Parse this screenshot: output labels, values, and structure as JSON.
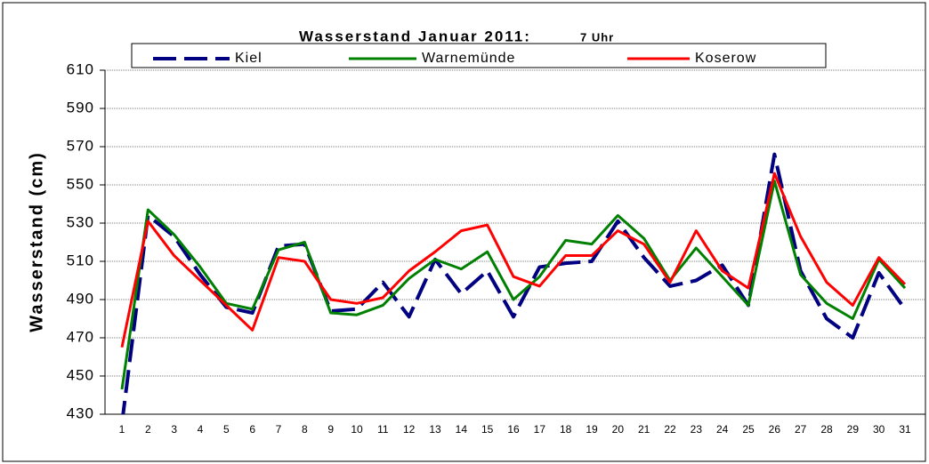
{
  "chart_data": {
    "type": "line",
    "title": "Wasserstand Januar 2011:",
    "subtitle": "7 Uhr",
    "ylabel": "Wasserstand (cm)",
    "categories": [
      "1",
      "2",
      "3",
      "4",
      "5",
      "6",
      "7",
      "8",
      "9",
      "10",
      "11",
      "12",
      "13",
      "14",
      "15",
      "16",
      "17",
      "18",
      "19",
      "20",
      "21",
      "22",
      "23",
      "24",
      "25",
      "26",
      "27",
      "28",
      "29",
      "30",
      "31"
    ],
    "series": [
      {
        "name": "Kiel",
        "color": "#000080",
        "dashed": true,
        "values": [
          425,
          534,
          523,
          503,
          486,
          483,
          518,
          519,
          484,
          485,
          499,
          481,
          511,
          493,
          505,
          481,
          507,
          509,
          510,
          531,
          512,
          497,
          500,
          508,
          487,
          566,
          505,
          480,
          470,
          504,
          485
        ]
      },
      {
        "name": "Warnemünde",
        "color": "#008000",
        "values": [
          443,
          537,
          524,
          507,
          488,
          485,
          516,
          520,
          483,
          482,
          487,
          501,
          511,
          506,
          515,
          490,
          502,
          521,
          519,
          534,
          522,
          500,
          517,
          502,
          487,
          552,
          503,
          488,
          480,
          511,
          496
        ]
      },
      {
        "name": "Koserow",
        "color": "#ff0000",
        "values": [
          465,
          531,
          513,
          500,
          487,
          474,
          512,
          510,
          490,
          488,
          491,
          505,
          515,
          526,
          529,
          502,
          497,
          513,
          513,
          526,
          519,
          499,
          526,
          505,
          496,
          556,
          523,
          499,
          487,
          512,
          498
        ]
      }
    ],
    "ylim": [
      430,
      610
    ],
    "yticks": [
      430,
      450,
      470,
      490,
      510,
      530,
      550,
      570,
      590,
      610
    ],
    "grid": true
  }
}
